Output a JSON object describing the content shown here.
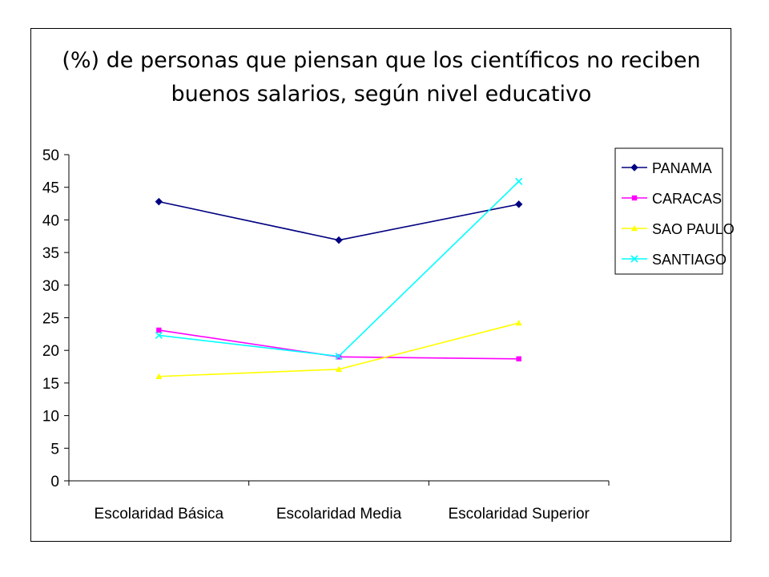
{
  "chart_data": {
    "type": "line",
    "title": [
      "(%) de personas que piensan que los científicos no reciben",
      "buenos salarios, según nivel educativo"
    ],
    "xlabel": "",
    "ylabel": "",
    "categories": [
      "Escolaridad Básica",
      "Escolaridad Media",
      "Escolaridad Superior"
    ],
    "ylim": [
      0,
      50
    ],
    "yticks": [
      "0",
      "5",
      "10",
      "15",
      "20",
      "25",
      "30",
      "35",
      "40",
      "45",
      "50"
    ],
    "grid": false,
    "legend_position": "right",
    "series": [
      {
        "name": "PANAMA",
        "values": [
          42.8,
          36.9,
          42.4
        ],
        "color": "#000080",
        "marker": "diamond"
      },
      {
        "name": "CARACAS",
        "values": [
          23.1,
          19.0,
          18.7
        ],
        "color": "#ff00ff",
        "marker": "square"
      },
      {
        "name": "SAO PAULO",
        "values": [
          16.0,
          17.1,
          24.2
        ],
        "color": "#ffff00",
        "marker": "triangle"
      },
      {
        "name": "SANTIAGO",
        "values": [
          22.3,
          19.1,
          45.9
        ],
        "color": "#00ffff",
        "marker": "x"
      }
    ]
  }
}
